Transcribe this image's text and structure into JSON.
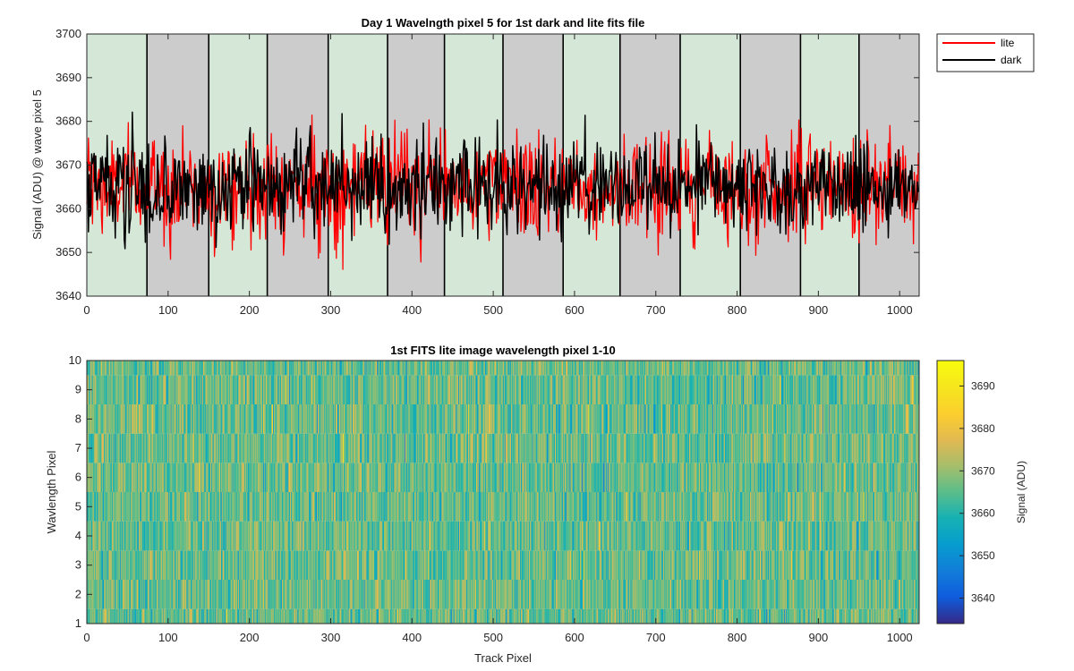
{
  "chart_data": [
    {
      "type": "line",
      "title": "Day 1 Wavelngth pixel 5 for 1st dark and lite fits file",
      "xlabel": "",
      "ylabel": "Signal (ADU) @ wave pixel 5",
      "xlim": [
        0,
        1024
      ],
      "ylim": [
        3640,
        3700
      ],
      "xticks": [
        0,
        100,
        200,
        300,
        400,
        500,
        600,
        700,
        800,
        900,
        1000
      ],
      "yticks": [
        3640,
        3650,
        3660,
        3670,
        3680,
        3690,
        3700
      ],
      "grid": false,
      "legend": "outside-top-right",
      "segment_boundaries": [
        0,
        74,
        150,
        222,
        297,
        370,
        440,
        512,
        586,
        656,
        730,
        804,
        878,
        950,
        1024
      ],
      "segment_colors": [
        "#d5e8d8",
        "#cccccc"
      ],
      "series": [
        {
          "name": "lite",
          "color": "#ff0000",
          "mean": 3665,
          "std": 6,
          "range": [
            3641,
            3690
          ],
          "n_points": 1024
        },
        {
          "name": "dark",
          "color": "#000000",
          "mean": 3665,
          "std": 5.5,
          "range": [
            3640,
            3688
          ],
          "n_points": 1024
        }
      ]
    },
    {
      "type": "heatmap",
      "title": "1st FITS lite image wavelength pixel 1-10",
      "xlabel": "Track Pixel",
      "ylabel": "Wavlength Pixel",
      "xlim": [
        0,
        1024
      ],
      "ylim": [
        1,
        10
      ],
      "xticks": [
        0,
        100,
        200,
        300,
        400,
        500,
        600,
        700,
        800,
        900,
        1000
      ],
      "yticks": [
        1,
        2,
        3,
        4,
        5,
        6,
        7,
        8,
        9,
        10
      ],
      "rows": 10,
      "columns": 1024,
      "value_mean": 3666,
      "value_std": 6,
      "colorbar": {
        "label": "Signal (ADU)",
        "range": [
          3634,
          3696
        ],
        "ticks": [
          3640,
          3650,
          3660,
          3670,
          3680,
          3690
        ],
        "colormap": "parula"
      }
    }
  ]
}
